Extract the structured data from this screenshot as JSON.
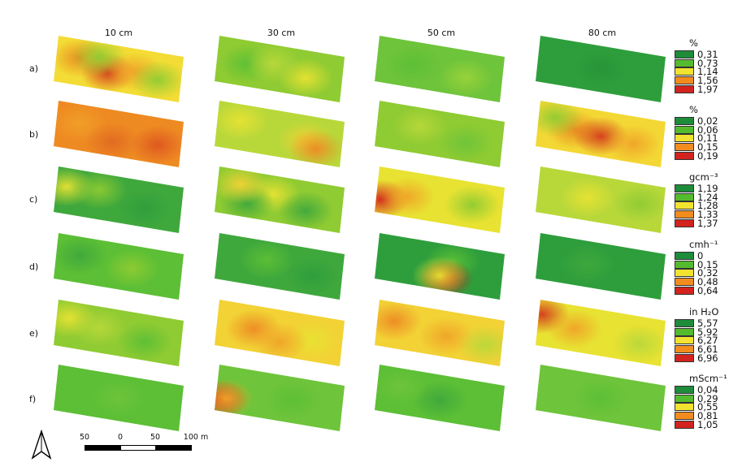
{
  "columns": [
    "10 cm",
    "30 cm",
    "50 cm",
    "80 cm"
  ],
  "rows": [
    "a)",
    "b)",
    "c)",
    "d)",
    "e)",
    "f)"
  ],
  "palette": [
    "#1e8c3a",
    "#55bb2e",
    "#f2e330",
    "#f28c1e",
    "#d2231e"
  ],
  "legends": [
    {
      "unit": "%",
      "values": [
        "0,31",
        "0,73",
        "1,14",
        "1,56",
        "1,97"
      ]
    },
    {
      "unit": "%",
      "values": [
        "0,02",
        "0,06",
        "0,11",
        "0,15",
        "0,19"
      ]
    },
    {
      "unit": "gcm⁻³",
      "values": [
        "1,19",
        "1,24",
        "1,28",
        "1,33",
        "1,37"
      ]
    },
    {
      "unit": "cmh⁻¹",
      "values": [
        "0",
        "0,15",
        "0,32",
        "0,48",
        "0,64"
      ]
    },
    {
      "unit": "in H₂O",
      "values": [
        "5,57",
        "5,92",
        "6,27",
        "6,61",
        "6,96"
      ]
    },
    {
      "unit": "mScm⁻¹",
      "values": [
        "0,04",
        "0,29",
        "0,55",
        "0,81",
        "1,05"
      ]
    }
  ],
  "scale_bar": {
    "labels": [
      "50",
      "0",
      "50",
      "100 m"
    ]
  },
  "north_arrow": "north-arrow-icon",
  "panels": [
    [
      {
        "base": "#f3dc35",
        "blobs": [
          [
            "#e88a20",
            0.2,
            0.4
          ],
          [
            "#d43a1c",
            0.42,
            0.62
          ],
          [
            "#8fcb32",
            0.35,
            0.3
          ],
          [
            "#f0a428",
            0.62,
            0.5
          ],
          [
            "#8fcb32",
            0.8,
            0.6
          ]
        ]
      },
      {
        "base": "#8fcb32",
        "blobs": [
          [
            "#5cbf35",
            0.25,
            0.5
          ],
          [
            "#e8e232",
            0.7,
            0.6
          ],
          [
            "#b8d83a",
            0.45,
            0.4
          ]
        ]
      },
      {
        "base": "#6ec43a",
        "blobs": [
          [
            "#5cbf35",
            0.3,
            0.5
          ],
          [
            "#9ad23a",
            0.7,
            0.6
          ]
        ]
      },
      {
        "base": "#2e9e3c",
        "blobs": [
          [
            "#279438",
            0.5,
            0.5
          ]
        ]
      }
    ],
    [
      {
        "base": "#ee8a22",
        "blobs": [
          [
            "#f0a028",
            0.2,
            0.4
          ],
          [
            "#de5620",
            0.8,
            0.6
          ],
          [
            "#e06a22",
            0.45,
            0.7
          ]
        ]
      },
      {
        "base": "#b8d83a",
        "blobs": [
          [
            "#f2d235",
            0.7,
            0.55
          ],
          [
            "#ed8a24",
            0.78,
            0.7
          ],
          [
            "#e8e232",
            0.2,
            0.35
          ]
        ]
      },
      {
        "base": "#8fcb32",
        "blobs": [
          [
            "#b8d83a",
            0.35,
            0.4
          ],
          [
            "#6ec43a",
            0.7,
            0.6
          ]
        ]
      },
      {
        "base": "#f3d835",
        "blobs": [
          [
            "#e88a20",
            0.3,
            0.5
          ],
          [
            "#d43a1c",
            0.5,
            0.55
          ],
          [
            "#8fcb32",
            0.15,
            0.3
          ],
          [
            "#f0a428",
            0.75,
            0.6
          ]
        ]
      }
    ],
    [
      {
        "base": "#3fa83c",
        "blobs": [
          [
            "#e8e232",
            0.1,
            0.4
          ],
          [
            "#8fcb32",
            0.35,
            0.35
          ],
          [
            "#2e9e3c",
            0.7,
            0.6
          ]
        ]
      },
      {
        "base": "#8fcb32",
        "blobs": [
          [
            "#e8e232",
            0.45,
            0.4
          ],
          [
            "#3fa83c",
            0.25,
            0.7
          ],
          [
            "#3fa83c",
            0.7,
            0.65
          ],
          [
            "#f2d235",
            0.2,
            0.3
          ]
        ]
      },
      {
        "base": "#e8e232",
        "blobs": [
          [
            "#d2231e",
            0.05,
            0.7
          ],
          [
            "#f0a428",
            0.25,
            0.55
          ],
          [
            "#8fcb32",
            0.75,
            0.5
          ]
        ]
      },
      {
        "base": "#b8d83a",
        "blobs": [
          [
            "#e8e232",
            0.4,
            0.5
          ],
          [
            "#8fcb32",
            0.8,
            0.45
          ]
        ]
      }
    ],
    [
      {
        "base": "#5cbf35",
        "blobs": [
          [
            "#8fcb32",
            0.6,
            0.5
          ],
          [
            "#3fa83c",
            0.2,
            0.4
          ]
        ]
      },
      {
        "base": "#3fa83c",
        "blobs": [
          [
            "#5cbf35",
            0.4,
            0.4
          ],
          [
            "#2e9e3c",
            0.75,
            0.6
          ]
        ]
      },
      {
        "base": "#2e9e3c",
        "blobs": [
          [
            "#5cbf35",
            0.6,
            0.35
          ],
          [
            "#d2231e",
            0.55,
            0.75
          ],
          [
            "#e8e232",
            0.5,
            0.7
          ]
        ]
      },
      {
        "base": "#2e9e3c",
        "blobs": [
          [
            "#3fa83c",
            0.4,
            0.5
          ]
        ]
      }
    ],
    [
      {
        "base": "#8fcb32",
        "blobs": [
          [
            "#e8e232",
            0.12,
            0.35
          ],
          [
            "#5cbf35",
            0.7,
            0.6
          ],
          [
            "#b8d83a",
            0.35,
            0.45
          ]
        ]
      },
      {
        "base": "#f2d235",
        "blobs": [
          [
            "#ed8a24",
            0.3,
            0.5
          ],
          [
            "#e8e232",
            0.75,
            0.55
          ],
          [
            "#f0a428",
            0.5,
            0.7
          ]
        ]
      },
      {
        "base": "#f2d235",
        "blobs": [
          [
            "#ed8a24",
            0.15,
            0.4
          ],
          [
            "#f0a428",
            0.55,
            0.55
          ],
          [
            "#b8d83a",
            0.85,
            0.6
          ]
        ]
      },
      {
        "base": "#e8e232",
        "blobs": [
          [
            "#d43a1c",
            0.05,
            0.3
          ],
          [
            "#f0a428",
            0.3,
            0.5
          ],
          [
            "#b8d83a",
            0.8,
            0.6
          ]
        ]
      }
    ],
    [
      {
        "base": "#5cbf35",
        "blobs": [
          [
            "#6ec43a",
            0.5,
            0.5
          ]
        ]
      },
      {
        "base": "#6ec43a",
        "blobs": [
          [
            "#d2231e",
            0.04,
            0.75
          ],
          [
            "#f0a428",
            0.09,
            0.7
          ],
          [
            "#5cbf35",
            0.6,
            0.5
          ]
        ]
      },
      {
        "base": "#5cbf35",
        "blobs": [
          [
            "#3fa83c",
            0.5,
            0.55
          ],
          [
            "#6ec43a",
            0.2,
            0.4
          ]
        ]
      },
      {
        "base": "#6ec43a",
        "blobs": [
          [
            "#5cbf35",
            0.5,
            0.5
          ]
        ]
      }
    ]
  ]
}
